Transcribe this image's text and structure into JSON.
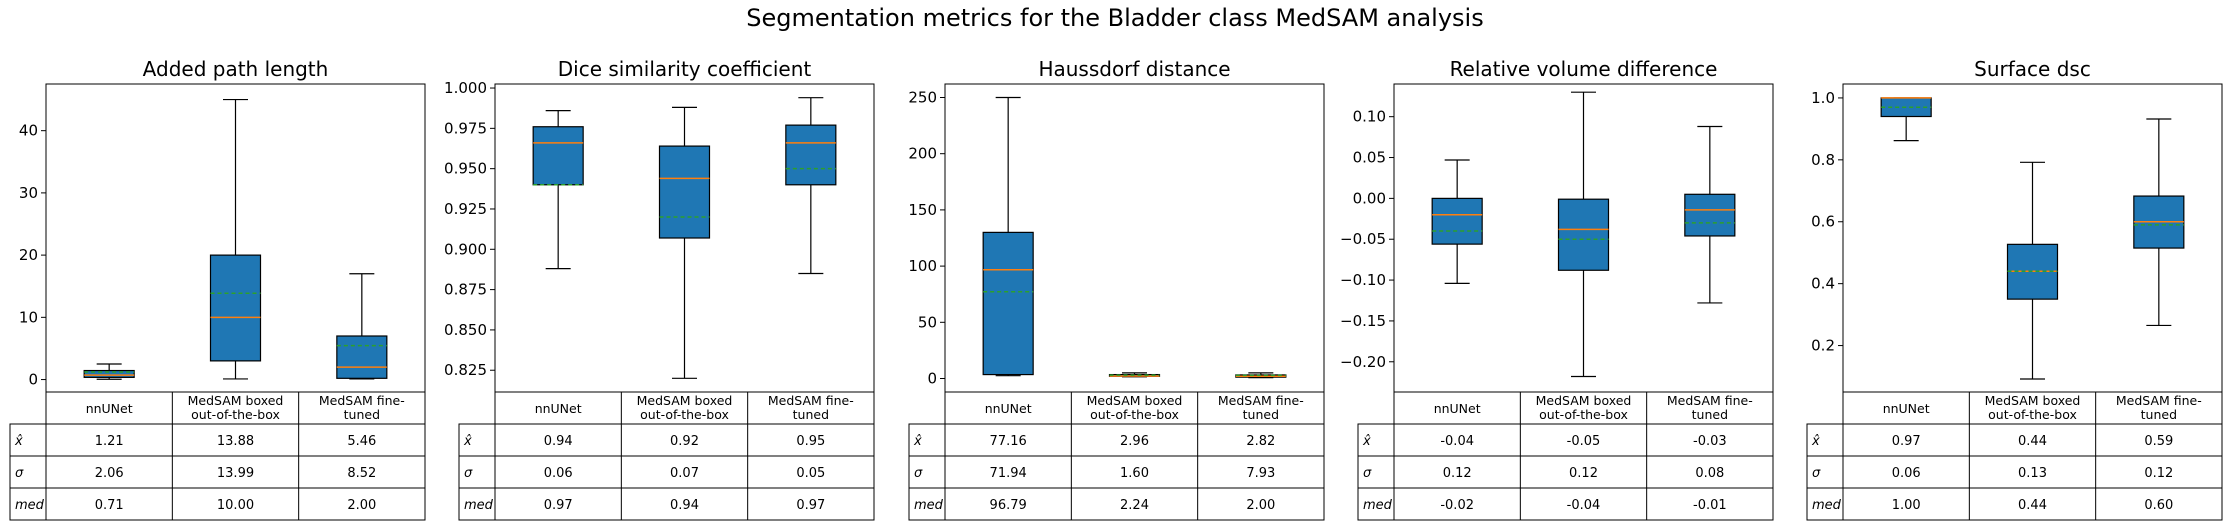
{
  "figure": {
    "title": "Segmentation metrics for the Bladder class MedSAM analysis"
  },
  "table_row_labels": [
    "x̂",
    "σ",
    "med"
  ],
  "colors": {
    "box_fill": "#1f77b4",
    "median_line": "#ff7f0e",
    "mean_line": "#2ca02c"
  },
  "chart_data": [
    {
      "type": "box",
      "title": "Added path length",
      "ylim": [
        -2,
        47.5
      ],
      "yticks": [
        0,
        10,
        20,
        30,
        40
      ],
      "tick_labels": [
        "0",
        "10",
        "20",
        "30",
        "40"
      ],
      "categories": [
        "nnUNet",
        "MedSAM boxed\nout-of-the-box",
        "MedSAM fine-\ntuned"
      ],
      "boxes": [
        {
          "whislo": 0.05,
          "q1": 0.35,
          "med": 0.71,
          "q3": 1.45,
          "whishi": 2.5,
          "mean": 1.21
        },
        {
          "whislo": 0.1,
          "q1": 3.0,
          "med": 10.0,
          "q3": 20.0,
          "whishi": 45.0,
          "mean": 13.88
        },
        {
          "whislo": 0.1,
          "q1": 0.2,
          "med": 2.0,
          "q3": 7.0,
          "whishi": 17.0,
          "mean": 5.46
        }
      ],
      "table": [
        [
          "1.21",
          "13.88",
          "5.46"
        ],
        [
          "2.06",
          "13.99",
          "8.52"
        ],
        [
          "0.71",
          "10.00",
          "2.00"
        ]
      ]
    },
    {
      "type": "box",
      "title": "Dice similarity coefficient",
      "ylim": [
        0.8115,
        1.0025
      ],
      "yticks": [
        0.825,
        0.85,
        0.875,
        0.9,
        0.925,
        0.95,
        0.975,
        1.0
      ],
      "tick_labels": [
        "0.825",
        "0.850",
        "0.875",
        "0.900",
        "0.925",
        "0.950",
        "0.975",
        "1.000"
      ],
      "categories": [
        "nnUNet",
        "MedSAM boxed\nout-of-the-box",
        "MedSAM fine-\ntuned"
      ],
      "boxes": [
        {
          "whislo": 0.888,
          "q1": 0.94,
          "med": 0.966,
          "q3": 0.976,
          "whishi": 0.986,
          "mean": 0.94
        },
        {
          "whislo": 0.82,
          "q1": 0.907,
          "med": 0.944,
          "q3": 0.964,
          "whishi": 0.988,
          "mean": 0.92
        },
        {
          "whislo": 0.885,
          "q1": 0.94,
          "med": 0.966,
          "q3": 0.977,
          "whishi": 0.994,
          "mean": 0.95
        }
      ],
      "table": [
        [
          "0.94",
          "0.92",
          "0.95"
        ],
        [
          "0.06",
          "0.07",
          "0.05"
        ],
        [
          "0.97",
          "0.94",
          "0.97"
        ]
      ]
    },
    {
      "type": "box",
      "title": "Haussdorf distance",
      "ylim": [
        -12,
        262
      ],
      "yticks": [
        0,
        50,
        100,
        150,
        200,
        250
      ],
      "tick_labels": [
        "0",
        "50",
        "100",
        "150",
        "200",
        "250"
      ],
      "categories": [
        "nnUNet",
        "MedSAM boxed\nout-of-the-box",
        "MedSAM fine-\ntuned"
      ],
      "boxes": [
        {
          "whislo": 2.5,
          "q1": 3.5,
          "med": 96.79,
          "q3": 130.0,
          "whishi": 250.0,
          "mean": 77.16
        },
        {
          "whislo": 1.5,
          "q1": 2.0,
          "med": 2.24,
          "q3": 3.5,
          "whishi": 5.0,
          "mean": 2.96
        },
        {
          "whislo": 0.8,
          "q1": 1.2,
          "med": 2.0,
          "q3": 3.2,
          "whishi": 5.0,
          "mean": 2.82
        }
      ],
      "table": [
        [
          "77.16",
          "2.96",
          "2.82"
        ],
        [
          "71.94",
          "1.60",
          "7.93"
        ],
        [
          "96.79",
          "2.24",
          "2.00"
        ]
      ]
    },
    {
      "type": "box",
      "title": "Relative volume difference",
      "ylim": [
        -0.237,
        0.14
      ],
      "yticks": [
        -0.2,
        -0.15,
        -0.1,
        -0.05,
        0.0,
        0.05,
        0.1
      ],
      "tick_labels": [
        "−0.20",
        "−0.15",
        "−0.10",
        "−0.05",
        "0.00",
        "0.05",
        "0.10"
      ],
      "categories": [
        "nnUNet",
        "MedSAM boxed\nout-of-the-box",
        "MedSAM fine-\ntuned"
      ],
      "boxes": [
        {
          "whislo": -0.104,
          "q1": -0.056,
          "med": -0.02,
          "q3": 0.0,
          "whishi": 0.047,
          "mean": -0.04
        },
        {
          "whislo": -0.218,
          "q1": -0.088,
          "med": -0.038,
          "q3": -0.001,
          "whishi": 0.13,
          "mean": -0.05
        },
        {
          "whislo": -0.128,
          "q1": -0.046,
          "med": -0.014,
          "q3": 0.005,
          "whishi": 0.088,
          "mean": -0.03
        }
      ],
      "table": [
        [
          "-0.04",
          "-0.05",
          "-0.03"
        ],
        [
          "0.12",
          "0.12",
          "0.08"
        ],
        [
          "-0.02",
          "-0.04",
          "-0.01"
        ]
      ]
    },
    {
      "type": "box",
      "title": "Surface dsc",
      "ylim": [
        0.05,
        1.045
      ],
      "yticks": [
        0.2,
        0.4,
        0.6,
        0.8,
        1.0
      ],
      "tick_labels": [
        "0.2",
        "0.4",
        "0.6",
        "0.8",
        "1.0"
      ],
      "categories": [
        "nnUNet",
        "MedSAM boxed\nout-of-the-box",
        "MedSAM fine-\ntuned"
      ],
      "boxes": [
        {
          "whislo": 0.862,
          "q1": 0.94,
          "med": 1.0,
          "q3": 1.0,
          "whishi": 1.0,
          "mean": 0.97
        },
        {
          "whislo": 0.092,
          "q1": 0.35,
          "med": 0.44,
          "q3": 0.527,
          "whishi": 0.792,
          "mean": 0.44
        },
        {
          "whislo": 0.265,
          "q1": 0.515,
          "med": 0.6,
          "q3": 0.683,
          "whishi": 0.932,
          "mean": 0.59
        }
      ],
      "table": [
        [
          "0.97",
          "0.44",
          "0.59"
        ],
        [
          "0.06",
          "0.13",
          "0.12"
        ],
        [
          "1.00",
          "0.44",
          "0.60"
        ]
      ]
    }
  ]
}
